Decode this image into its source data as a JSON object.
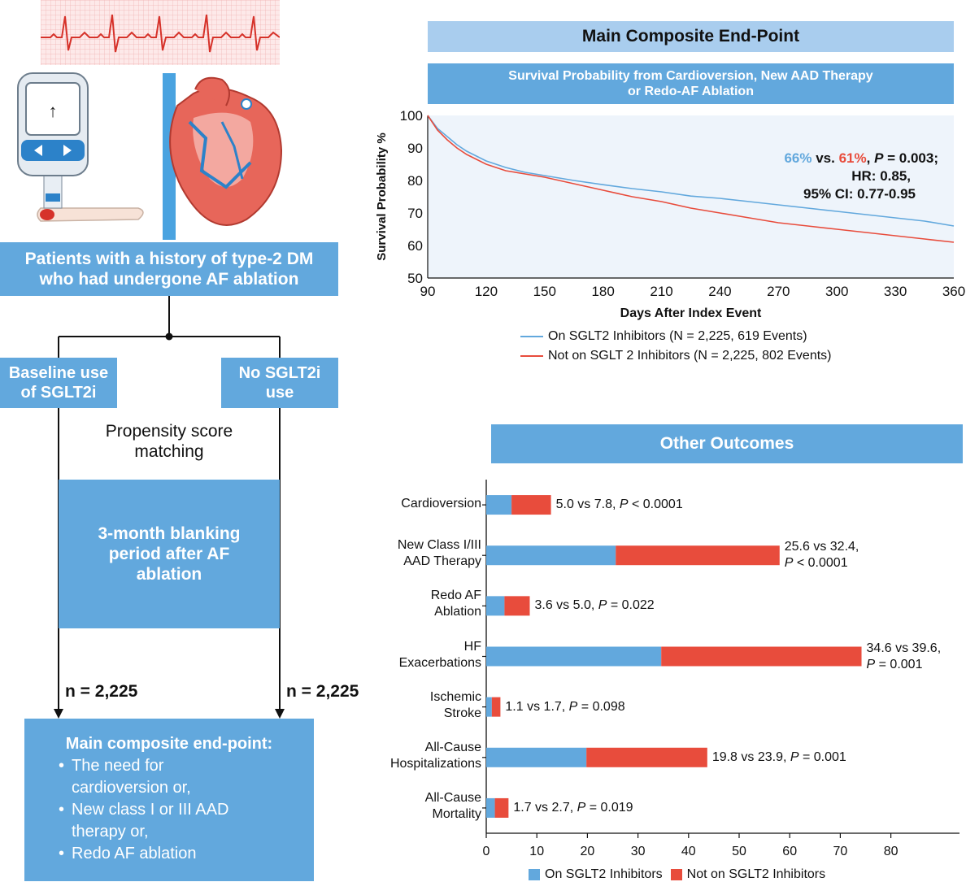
{
  "colors": {
    "blue": "#62a8dd",
    "red": "#e84c3c",
    "light_blue": "#a9cdee",
    "panel_bg": "#eef4fb"
  },
  "left": {
    "population": "Patients with a history of type-2 DM\nwho had undergone AF ablation",
    "baseline": "Baseline use\nof SGLT2i",
    "no_sglt2": "No SGLT2i\nuse",
    "matching": "Propensity score\nmatching",
    "blanking": "3-month blanking\nperiod after AF\nablation",
    "n_left": "n = 2,225",
    "n_right": "n = 2,225",
    "endpoint_title": "Main composite end-point:",
    "endpoint_items": [
      "The need for\ncardioversion or,",
      "New class I or III AAD\ntherapy or,",
      "Redo AF ablation"
    ]
  },
  "km": {
    "header": "Main Composite End-Point",
    "subheader": "Survival Probability from Cardioversion, New AAD Therapy\nor Redo-AF Ablation",
    "stat_blue": "66%",
    "stat_vs": " vs. ",
    "stat_red": "61%",
    "stat_comma": ", ",
    "stat_p": "P",
    "stat_pval": " = 0.003;",
    "stat_hr": "HR: 0.85,",
    "stat_ci": "95% CI: 0.77-0.95",
    "legend_on": "On SGLT2 Inhibitors (N = 2,225, 619 Events)",
    "legend_off": "Not on SGLT 2 Inhibitors (N = 2,225, 802 Events)"
  },
  "chart_data": [
    {
      "type": "line",
      "title": "Survival Probability from Cardioversion, New AAD Therapy or Redo-AF Ablation",
      "xlabel": "Days After Index Event",
      "ylabel": "Survival Probability %",
      "xlim": [
        90,
        360
      ],
      "ylim": [
        50,
        100
      ],
      "xticks": [
        90,
        120,
        150,
        180,
        210,
        240,
        270,
        300,
        330,
        360
      ],
      "yticks": [
        50,
        60,
        70,
        80,
        90,
        100
      ],
      "series": [
        {
          "name": "On SGLT2 Inhibitors (N = 2,225, 619 Events)",
          "color": "#62a8dd",
          "x": [
            90,
            95,
            100,
            105,
            110,
            120,
            130,
            140,
            150,
            165,
            180,
            195,
            210,
            225,
            240,
            255,
            270,
            285,
            300,
            315,
            330,
            345,
            360
          ],
          "y": [
            100,
            96,
            93.5,
            91,
            89,
            86,
            84,
            82.5,
            81.5,
            80,
            78.7,
            77.5,
            76.5,
            75.2,
            74.5,
            73.5,
            72.5,
            71.5,
            70.5,
            69.5,
            68.5,
            67.5,
            66
          ]
        },
        {
          "name": "Not on SGLT 2 Inhibitors (N = 2,225, 802 Events)",
          "color": "#e84c3c",
          "x": [
            90,
            95,
            100,
            105,
            110,
            120,
            130,
            140,
            150,
            165,
            180,
            195,
            210,
            225,
            240,
            255,
            270,
            285,
            300,
            315,
            330,
            345,
            360
          ],
          "y": [
            100,
            95.5,
            92.5,
            90,
            88,
            85,
            83,
            82,
            81,
            79,
            77,
            75,
            73.5,
            71.5,
            70,
            68.5,
            67,
            66,
            65,
            64,
            63,
            62,
            61
          ]
        }
      ]
    },
    {
      "type": "bar",
      "title": "Other Outcomes",
      "stacked": true,
      "xlim": [
        0,
        90
      ],
      "xticks": [
        0,
        10,
        20,
        30,
        40,
        50,
        60,
        70,
        80
      ],
      "categories": [
        "Cardioversion",
        "New Class I/III\nAAD Therapy",
        "Redo AF\nAblation",
        "HF\nExacerbations",
        "Ischemic\nStroke",
        "All-Cause\nHospitalizations",
        "All-Cause\nMortality"
      ],
      "series": [
        {
          "name": "On SGLT2 Inhibitors",
          "color": "#62a8dd",
          "values": [
            5.0,
            25.6,
            3.6,
            34.6,
            1.1,
            19.8,
            1.7
          ]
        },
        {
          "name": "Not on SGLT2 Inhibitors",
          "color": "#e84c3c",
          "values": [
            7.8,
            32.4,
            5.0,
            39.6,
            1.7,
            23.9,
            2.7
          ]
        }
      ],
      "annotations": [
        {
          "text": "5.0 vs 7.8, ",
          "p": "P",
          "pval": " < 0.0001",
          "break": false
        },
        {
          "text": "25.6 vs 32.4,",
          "p": "P",
          "pval": " < 0.0001",
          "break": true
        },
        {
          "text": "3.6 vs 5.0, ",
          "p": "P",
          "pval": " = 0.022",
          "break": false
        },
        {
          "text": "34.6 vs 39.6,",
          "p": "P",
          "pval": " = 0.001",
          "break": true
        },
        {
          "text": "1.1 vs 1.7, ",
          "p": "P",
          "pval": " = 0.098",
          "break": false
        },
        {
          "text": "19.8 vs 23.9, ",
          "p": "P",
          "pval": " = 0.001",
          "break": false
        },
        {
          "text": "1.7 vs 2.7, ",
          "p": "P",
          "pval": " = 0.019",
          "break": false
        }
      ],
      "header": "Other Outcomes",
      "legend": [
        "On SGLT2 Inhibitors",
        "Not on SGLT2 Inhibitors"
      ]
    }
  ]
}
